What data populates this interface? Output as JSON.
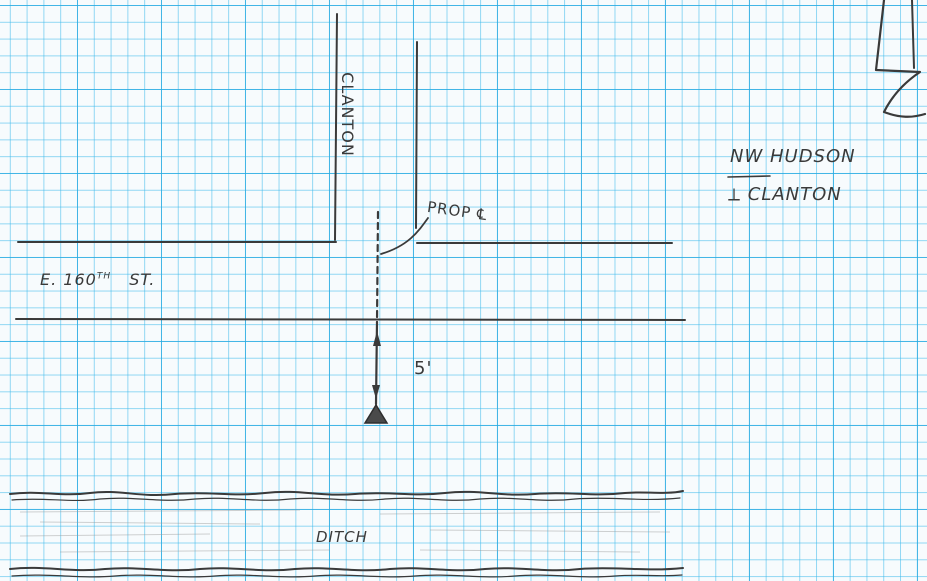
{
  "labels": {
    "clanton_street": "CLANTON",
    "e_160th_street_prefix": "E. 160",
    "e_160th_street_superscript": "TH",
    "e_160th_street_suffix": "ST.",
    "prop_centerline": "PROP ℄",
    "distance": "5'",
    "ditch": "DITCH",
    "location_line1": "NW HUDSON",
    "location_line2": "CLANTON"
  },
  "colors": {
    "grid": "#28aae1",
    "ink": "#3a3a3a",
    "paper": "#f7fbfd"
  }
}
